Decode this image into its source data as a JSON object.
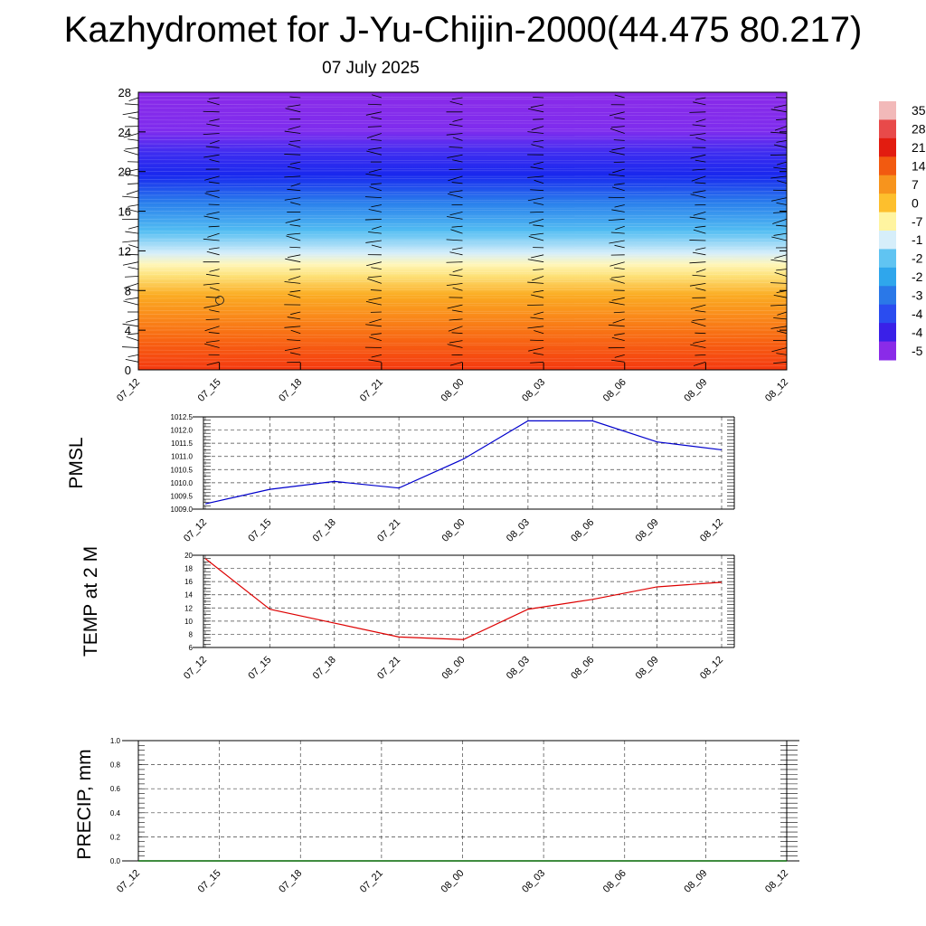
{
  "header": {
    "title": "Kazhydromet for J-Yu-Chijin-2000(44.475 80.217)",
    "subtitle": "07 July 2025"
  },
  "chart_data": [
    {
      "type": "heatmap",
      "name": "temperature-cross-section",
      "x_ticks": [
        "07_12",
        "07_15",
        "07_18",
        "07_21",
        "08_00",
        "08_03",
        "08_06",
        "08_09",
        "08_12"
      ],
      "y_ticks": [
        "0",
        "4",
        "8",
        "12",
        "16",
        "20",
        "24",
        "28"
      ],
      "ylim": [
        0,
        28
      ],
      "colorbar_labels": [
        "35",
        "28",
        "21",
        "14",
        "7",
        "0",
        "-7",
        "-1",
        "-2",
        "-2",
        "-3",
        "-4",
        "-4",
        "-5"
      ],
      "colorbar_colors": [
        "#f2b9b9",
        "#e84a4a",
        "#e21c10",
        "#f25a10",
        "#f7941d",
        "#fdbf2d",
        "#fff4a0",
        "#d6eefa",
        "#60c4f2",
        "#2fa6ec",
        "#2a78e8",
        "#2a4cf0",
        "#3a20e8",
        "#8a2be8"
      ],
      "wind_barbs": true
    },
    {
      "type": "line",
      "ylabel": "PMSL",
      "x": [
        "07_12",
        "07_15",
        "07_18",
        "07_21",
        "08_00",
        "08_03",
        "08_06",
        "08_09",
        "08_12"
      ],
      "y_ticks": [
        "1009.0",
        "1009.5",
        "1010.0",
        "1010.5",
        "1011.0",
        "1011.5",
        "1012.0",
        "1012.5"
      ],
      "ylim": [
        1009.0,
        1012.5
      ],
      "series": [
        {
          "values": [
            1009.2,
            1009.75,
            1010.05,
            1009.8,
            1010.9,
            1012.35,
            1012.35,
            1011.55,
            1011.25
          ],
          "color": "#0000cc"
        }
      ],
      "grid": true
    },
    {
      "type": "line",
      "ylabel": "TEMP at 2 M",
      "x": [
        "07_12",
        "07_15",
        "07_18",
        "07_21",
        "08_00",
        "08_03",
        "08_06",
        "08_09",
        "08_12"
      ],
      "y_ticks": [
        "6",
        "8",
        "10",
        "12",
        "14",
        "16",
        "18",
        "20"
      ],
      "ylim": [
        6,
        20
      ],
      "series": [
        {
          "values": [
            19.5,
            11.8,
            9.7,
            7.6,
            7.2,
            11.8,
            13.3,
            15.2,
            15.9
          ],
          "color": "#dd0000"
        }
      ],
      "grid": true
    },
    {
      "type": "line",
      "ylabel": "PRECIP, mm",
      "x_ticks": [
        "07_12",
        "07_15",
        "07_18",
        "07_21",
        "08_00",
        "08_03",
        "08_06",
        "08_09",
        "08_12"
      ],
      "y_ticks": [
        "0.0",
        "0.2",
        "0.4",
        "0.6",
        "0.8",
        "1.0"
      ],
      "ylim": [
        0,
        1
      ],
      "series": [
        {
          "values": [
            0,
            0,
            0,
            0,
            0,
            0,
            0,
            0,
            0
          ],
          "color": "#006600"
        }
      ],
      "grid": true
    }
  ]
}
